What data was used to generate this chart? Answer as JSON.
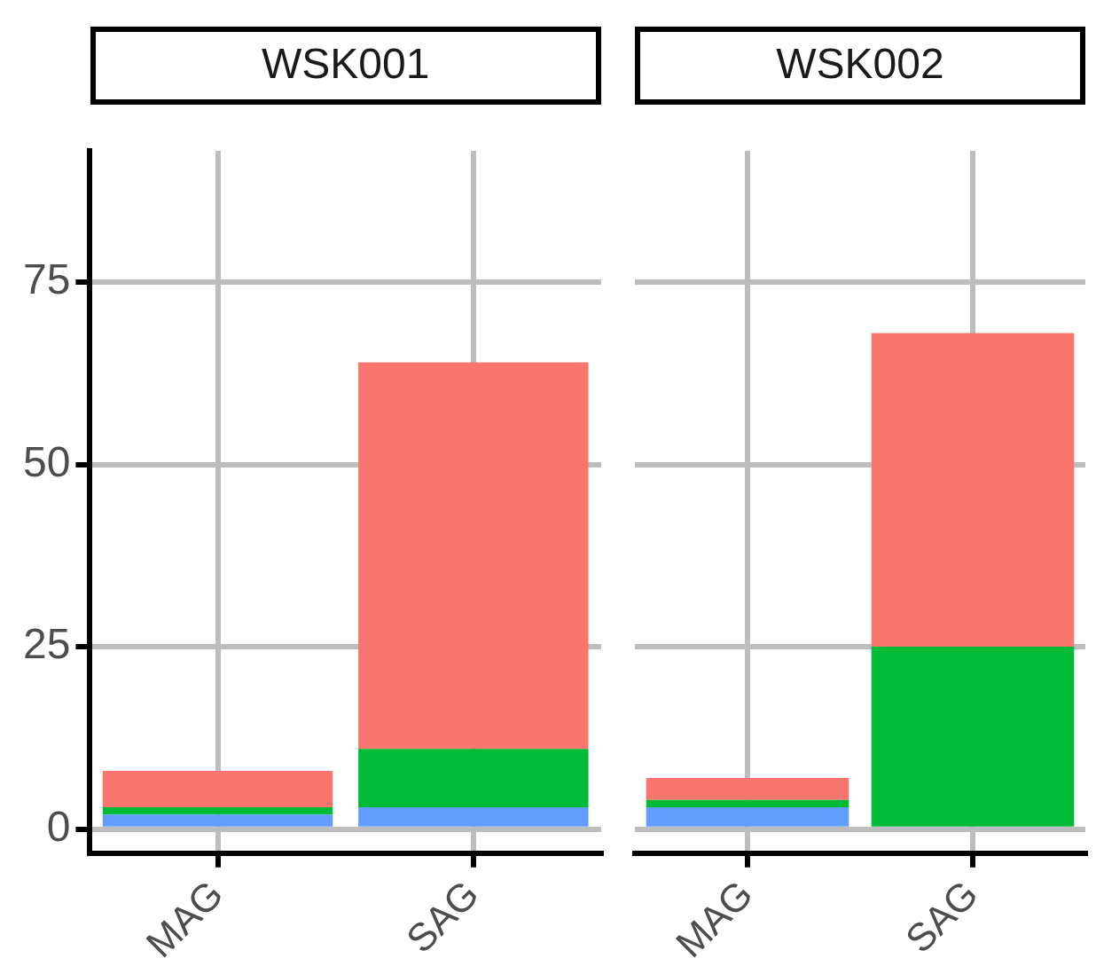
{
  "chart_data": [
    {
      "type": "bar",
      "title": "WSK001",
      "categories": [
        "MAG",
        "SAG"
      ],
      "stacked": true,
      "grid": true,
      "ylim": [
        -3.3,
        93
      ],
      "yticks": [
        0,
        25,
        50,
        75
      ],
      "series": [
        {
          "color": "#619cff",
          "values": [
            2,
            3
          ]
        },
        {
          "color": "#00ba38",
          "values": [
            1,
            8
          ]
        },
        {
          "color": "#f8766d",
          "values": [
            5,
            53
          ]
        }
      ]
    },
    {
      "type": "bar",
      "title": "WSK002",
      "categories": [
        "MAG",
        "SAG"
      ],
      "stacked": true,
      "grid": true,
      "ylim": [
        -3.3,
        93
      ],
      "yticks": [
        0,
        25,
        50,
        75
      ],
      "tick_labels": "x",
      "series": [
        {
          "color": "#619cff",
          "values": [
            3,
            0
          ]
        },
        {
          "color": "#00ba38",
          "values": [
            1,
            25
          ]
        },
        {
          "color": "#f8766d",
          "values": [
            3,
            43
          ]
        }
      ]
    }
  ]
}
